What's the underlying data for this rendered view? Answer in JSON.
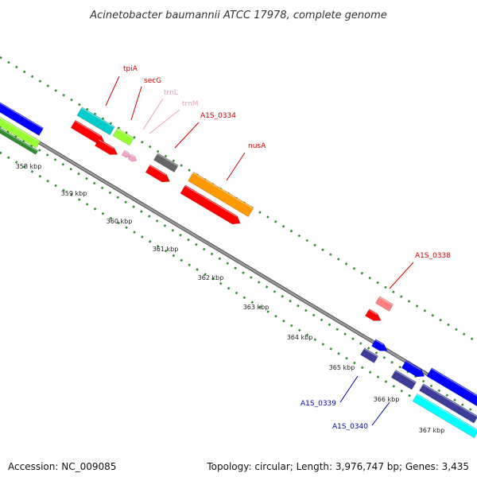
{
  "title": "Acinetobacter baumannii ATCC 17978, complete genome",
  "footer": {
    "accession": "Accession: NC_009085",
    "summary": "Topology: circular; Length: 3,976,747 bp; Genes: 3,435"
  },
  "colors": {
    "backbone": "#8a8a8a",
    "tick_dots": "#2e8b2e",
    "forward_cds": "#ff0000",
    "trna": "#f4a0c8",
    "gene_label_red": "#cc0000",
    "gene_label_pink": "#e8a0c0",
    "gene_label_blue": "#0000aa"
  },
  "ticks": [
    {
      "label": "358 kbp"
    },
    {
      "label": "359 kbp"
    },
    {
      "label": "360 kbp"
    },
    {
      "label": "361 kbp"
    },
    {
      "label": "362 kbp"
    },
    {
      "label": "363 kbp"
    },
    {
      "label": "364 kbp"
    },
    {
      "label": "365 kbp"
    },
    {
      "label": "366 kbp"
    },
    {
      "label": "367 kbp"
    }
  ],
  "genes": [
    {
      "name": "tpiA",
      "color": "#cc0000"
    },
    {
      "name": "secG",
      "color": "#cc0000"
    },
    {
      "name": "trnL",
      "color": "#e8a0c0"
    },
    {
      "name": "trnM",
      "color": "#e8a0c0"
    },
    {
      "name": "A1S_0334",
      "color": "#cc0000"
    },
    {
      "name": "nusA",
      "color": "#cc0000"
    },
    {
      "name": "A1S_0338",
      "color": "#cc0000"
    },
    {
      "name": "A1S_0339",
      "color": "#0000aa"
    },
    {
      "name": "A1S_0340",
      "color": "#0000aa"
    }
  ],
  "feature_palette": [
    "#0000ff",
    "#99ff33",
    "#2e8b2e",
    "#00cccc",
    "#ff0000",
    "#f4a0c8",
    "#666666",
    "#ff9900",
    "#ff8080",
    "#3d3d99",
    "#00ffff"
  ]
}
